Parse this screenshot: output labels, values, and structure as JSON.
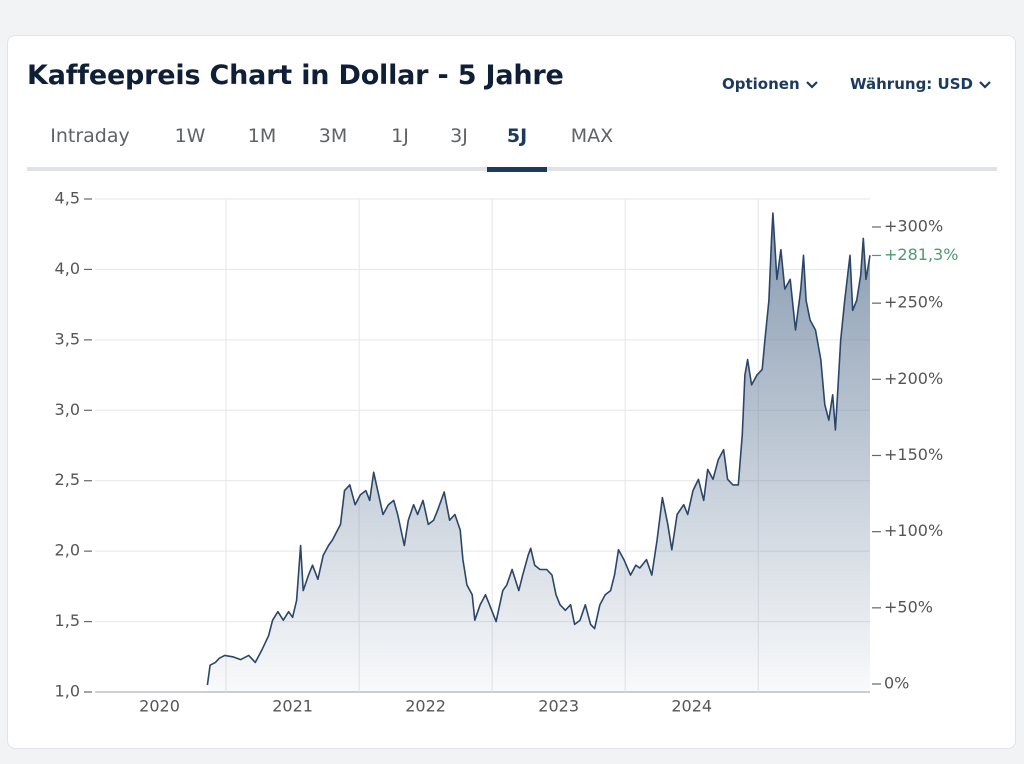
{
  "header": {
    "title": "Kaffeepreis Chart in Dollar - 5 Jahre",
    "options": "Optionen",
    "currency": "Währung: USD"
  },
  "tabs": {
    "items": [
      "Intraday",
      "1W",
      "1M",
      "3M",
      "1J",
      "3J",
      "5J",
      "MAX"
    ],
    "active": 6
  },
  "chart_data": {
    "type": "line",
    "color": "#2b4669",
    "fill_color": "#5f7896",
    "x": [
      2020.86,
      2020.88,
      2020.92,
      2020.95,
      2020.99,
      2021.05,
      2021.11,
      2021.17,
      2021.22,
      2021.27,
      2021.32,
      2021.35,
      2021.39,
      2021.43,
      2021.47,
      2021.5,
      2021.53,
      2021.56,
      2021.58,
      2021.62,
      2021.65,
      2021.69,
      2021.73,
      2021.77,
      2021.8,
      2021.86,
      2021.89,
      2021.93,
      2021.97,
      2022.01,
      2022.05,
      2022.08,
      2022.11,
      2022.14,
      2022.18,
      2022.22,
      2022.26,
      2022.29,
      2022.34,
      2022.37,
      2022.41,
      2022.44,
      2022.48,
      2022.52,
      2022.56,
      2022.59,
      2022.64,
      2022.68,
      2022.72,
      2022.76,
      2022.78,
      2022.81,
      2022.85,
      2022.87,
      2022.91,
      2022.95,
      2022.98,
      2023.03,
      2023.08,
      2023.11,
      2023.15,
      2023.2,
      2023.23,
      2023.27,
      2023.29,
      2023.32,
      2023.36,
      2023.41,
      2023.45,
      2023.48,
      2023.51,
      2023.55,
      2023.59,
      2023.62,
      2023.66,
      2023.7,
      2023.74,
      2023.77,
      2023.81,
      2023.85,
      2023.89,
      2023.92,
      2023.95,
      2023.99,
      2024.04,
      2024.08,
      2024.11,
      2024.16,
      2024.2,
      2024.24,
      2024.28,
      2024.32,
      2024.35,
      2024.39,
      2024.44,
      2024.47,
      2024.51,
      2024.55,
      2024.59,
      2024.62,
      2024.66,
      2024.7,
      2024.74,
      2024.77,
      2024.81,
      2024.85,
      2024.88,
      2024.9,
      2024.92,
      2024.95,
      2024.99,
      2025.03,
      2025.05,
      2025.08,
      2025.1,
      2025.11,
      2025.14,
      2025.17,
      2025.2,
      2025.24,
      2025.28,
      2025.32,
      2025.34,
      2025.36,
      2025.39,
      2025.43,
      2025.47,
      2025.5,
      2025.53,
      2025.56,
      2025.58,
      2025.6,
      2025.62,
      2025.65,
      2025.69,
      2025.71,
      2025.74,
      2025.77,
      2025.79,
      2025.81,
      2025.84
    ],
    "values": [
      1.05,
      1.19,
      1.21,
      1.24,
      1.26,
      1.25,
      1.23,
      1.26,
      1.21,
      1.3,
      1.4,
      1.51,
      1.57,
      1.51,
      1.57,
      1.53,
      1.65,
      2.04,
      1.72,
      1.83,
      1.9,
      1.8,
      1.97,
      2.04,
      2.08,
      2.19,
      2.43,
      2.47,
      2.33,
      2.4,
      2.43,
      2.36,
      2.56,
      2.43,
      2.26,
      2.33,
      2.36,
      2.26,
      2.04,
      2.22,
      2.33,
      2.26,
      2.36,
      2.19,
      2.22,
      2.29,
      2.42,
      2.22,
      2.26,
      2.15,
      1.94,
      1.76,
      1.69,
      1.51,
      1.62,
      1.69,
      1.62,
      1.5,
      1.72,
      1.76,
      1.87,
      1.72,
      1.83,
      1.97,
      2.02,
      1.9,
      1.87,
      1.87,
      1.83,
      1.69,
      1.62,
      1.58,
      1.62,
      1.48,
      1.51,
      1.62,
      1.48,
      1.45,
      1.62,
      1.69,
      1.72,
      1.83,
      2.01,
      1.94,
      1.83,
      1.9,
      1.88,
      1.94,
      1.83,
      2.08,
      2.38,
      2.19,
      2.01,
      2.26,
      2.33,
      2.26,
      2.43,
      2.51,
      2.36,
      2.58,
      2.51,
      2.65,
      2.72,
      2.51,
      2.47,
      2.47,
      2.83,
      3.25,
      3.36,
      3.18,
      3.25,
      3.29,
      3.5,
      3.78,
      4.21,
      4.4,
      3.93,
      4.14,
      3.86,
      3.93,
      3.57,
      3.86,
      4.1,
      3.78,
      3.64,
      3.57,
      3.36,
      3.04,
      2.93,
      3.11,
      2.86,
      3.18,
      3.5,
      3.78,
      4.1,
      3.71,
      3.78,
      3.96,
      4.22,
      3.93,
      4.1
    ],
    "xlim": [
      2020.015,
      2025.84
    ],
    "xticks": [
      {
        "value": 2020.5,
        "label": "2020"
      },
      {
        "value": 2021.5,
        "label": "2021"
      },
      {
        "value": 2022.5,
        "label": "2022"
      },
      {
        "value": 2023.5,
        "label": "2023"
      },
      {
        "value": 2024.5,
        "label": "2024"
      }
    ],
    "x_gridlines": [
      2021,
      2022,
      2023,
      2024,
      2025
    ],
    "ylim": [
      1.0,
      4.5
    ],
    "yticks": [
      {
        "value": 1.0,
        "label": "1,0"
      },
      {
        "value": 1.5,
        "label": "1,5"
      },
      {
        "value": 2.0,
        "label": "2,0"
      },
      {
        "value": 2.5,
        "label": "2,5"
      },
      {
        "value": 3.0,
        "label": "3,0"
      },
      {
        "value": 3.5,
        "label": "3,5"
      },
      {
        "value": 4.0,
        "label": "4,0"
      },
      {
        "value": 4.5,
        "label": "4,5"
      }
    ],
    "y2lim": [
      -5.25,
      318.37
    ],
    "y2ticks": [
      {
        "value": 0,
        "label": "0%"
      },
      {
        "value": 50,
        "label": "+50%"
      },
      {
        "value": 100,
        "label": "+100%"
      },
      {
        "value": 150,
        "label": "+150%"
      },
      {
        "value": 200,
        "label": "+200%"
      },
      {
        "value": 250,
        "label": "+250%"
      },
      {
        "value": 300,
        "label": "+300%"
      }
    ],
    "last_value_label": {
      "value": 281.3,
      "label": "+281,3%",
      "color": "#4f9a72"
    },
    "grid": true
  }
}
